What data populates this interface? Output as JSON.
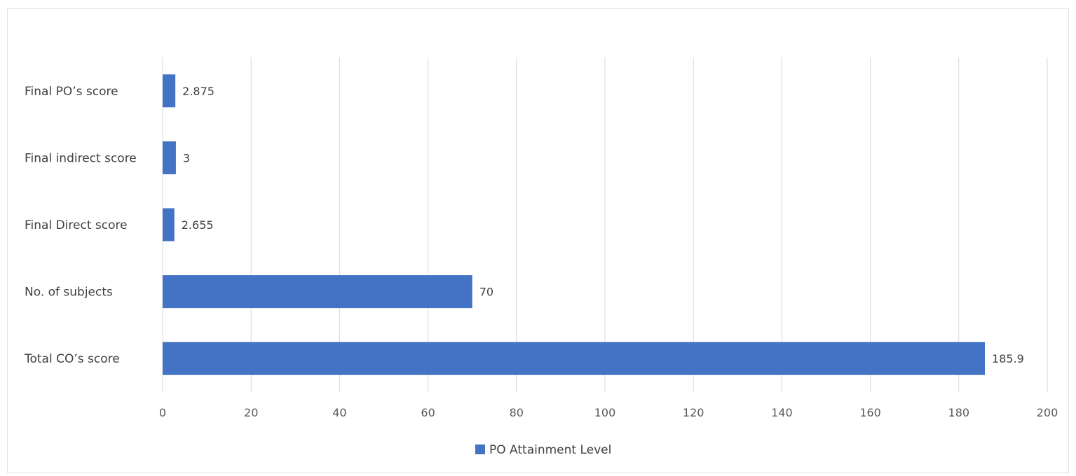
{
  "chart_data": {
    "type": "bar",
    "orientation": "horizontal",
    "categories": [
      "Final PO’s score",
      "Final indirect score",
      "Final Direct score",
      "No. of subjects",
      "Total CO’s score"
    ],
    "series": [
      {
        "name": "PO Attainment Level",
        "color": "#4472c4",
        "values": [
          2.875,
          3,
          2.655,
          70,
          185.9
        ]
      }
    ],
    "data_labels": [
      "2.875",
      "3",
      "2.655",
      "70",
      "185.9"
    ],
    "x_ticks": [
      0,
      20,
      40,
      60,
      80,
      100,
      120,
      140,
      160,
      180,
      200
    ],
    "xlim": [
      0,
      200
    ],
    "grid": "vertical",
    "legend_position": "bottom"
  }
}
